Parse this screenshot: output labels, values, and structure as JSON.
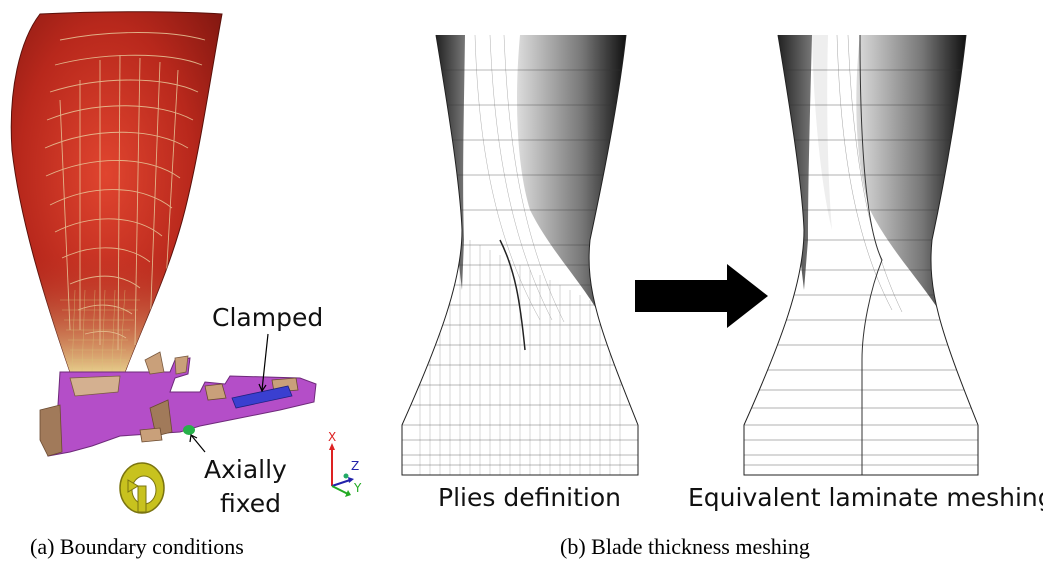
{
  "panel_a": {
    "label_clamped": "Clamped",
    "label_axially": "Axially",
    "label_fixed": "fixed",
    "axis_x": "X",
    "axis_y": "Y",
    "axis_z": "Z",
    "caption": "(a) Boundary conditions"
  },
  "panel_b": {
    "label_left": "Plies definition",
    "label_right": "Equivalent laminate meshing",
    "caption": "(b) Blade thickness meshing"
  },
  "colors": {
    "blade_red": "#a3231a",
    "blade_yellow": "#e8e08a",
    "root_magenta": "#b44ec8",
    "root_tan": "#c9a07a",
    "clamp_blue": "#3a3fd0",
    "fix_green": "#27b04a",
    "arrow": "#000000"
  },
  "icons": [
    "rotation-arrow-icon",
    "coordinate-triad-icon",
    "right-arrow-icon"
  ]
}
